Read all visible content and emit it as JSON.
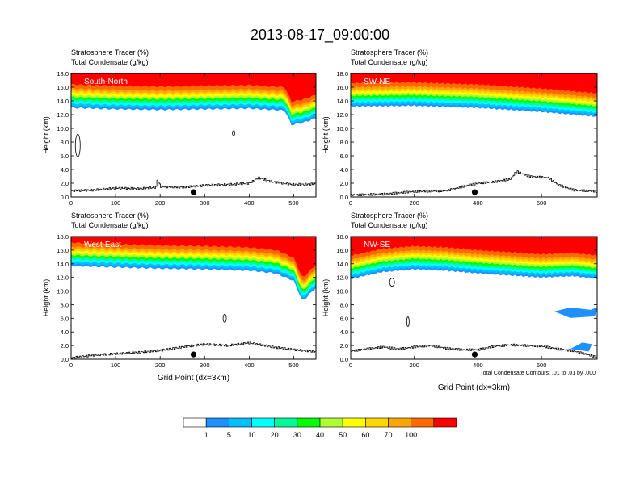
{
  "figure_title": "2013-08-17_09:00:00",
  "left_string_1": "Stratosphere Tracer   (%)",
  "left_string_2": "Total Condensate   (g/kg)",
  "footnote": "Total Condensate Contours: .01 to .01 by .000",
  "colorbar": {
    "levels": [
      "1",
      "5",
      "10",
      "20",
      "30",
      "40",
      "50",
      "60",
      "70",
      "100"
    ],
    "colors": [
      "#ffffff",
      "#1e90ff",
      "#00bfff",
      "#00ffff",
      "#00fa9a",
      "#00ff00",
      "#adff2f",
      "#ffff00",
      "#ffd700",
      "#ffa500",
      "#ff6a00",
      "#ff0000"
    ]
  },
  "chart_data": [
    {
      "type": "heatmap",
      "panel_label": "South-North",
      "title_lines": [
        "Stratosphere Tracer   (%)",
        "Total Condensate   (g/kg)"
      ],
      "xlabel": "",
      "ylabel": "Height (km)",
      "xlim": [
        0,
        550
      ],
      "ylim": [
        0,
        18
      ],
      "xticks": [
        "0",
        "100",
        "200",
        "300",
        "400",
        "500"
      ],
      "yticks": [
        "0.0",
        "2.0",
        "4.0",
        "6.0",
        "8.0",
        "10.0",
        "12.0",
        "14.0",
        "16.0",
        "18.0"
      ],
      "tracer_base_km": [
        [
          0,
          13.0
        ],
        [
          100,
          12.8
        ],
        [
          200,
          12.7
        ],
        [
          300,
          12.8
        ],
        [
          400,
          12.9
        ],
        [
          480,
          12.6
        ],
        [
          495,
          10.5
        ],
        [
          520,
          10.8
        ],
        [
          550,
          11.5
        ]
      ],
      "terrain_km": [
        [
          0,
          0.9
        ],
        [
          50,
          1.0
        ],
        [
          100,
          1.3
        ],
        [
          150,
          1.2
        ],
        [
          190,
          1.4
        ],
        [
          192,
          2.6
        ],
        [
          200,
          1.5
        ],
        [
          250,
          1.4
        ],
        [
          300,
          1.7
        ],
        [
          350,
          1.8
        ],
        [
          400,
          2.0
        ],
        [
          420,
          2.8
        ],
        [
          450,
          2.2
        ],
        [
          500,
          1.8
        ],
        [
          550,
          1.9
        ]
      ],
      "marker_x": 275
    },
    {
      "type": "heatmap",
      "panel_label": "SW-NE",
      "title_lines": [
        "Stratosphere Tracer   (%)",
        "Total Condensate   (g/kg)"
      ],
      "xlabel": "",
      "ylabel": "Height (km)",
      "xlim": [
        0,
        775
      ],
      "ylim": [
        0,
        18
      ],
      "xticks": [
        "0",
        "200",
        "400",
        "600"
      ],
      "yticks": [
        "0.0",
        "2.0",
        "4.0",
        "6.0",
        "8.0",
        "10.0",
        "12.0",
        "14.0",
        "16.0",
        "18.0"
      ],
      "tracer_base_km": [
        [
          0,
          13.2
        ],
        [
          200,
          13.3
        ],
        [
          400,
          13.0
        ],
        [
          600,
          12.4
        ],
        [
          775,
          11.7
        ]
      ],
      "terrain_km": [
        [
          0,
          0.3
        ],
        [
          100,
          0.4
        ],
        [
          200,
          0.8
        ],
        [
          300,
          0.9
        ],
        [
          350,
          1.5
        ],
        [
          400,
          2.0
        ],
        [
          450,
          2.2
        ],
        [
          500,
          2.6
        ],
        [
          520,
          3.7
        ],
        [
          560,
          3.0
        ],
        [
          620,
          2.8
        ],
        [
          650,
          1.8
        ],
        [
          700,
          1.0
        ],
        [
          775,
          0.8
        ]
      ],
      "marker_x": 390
    },
    {
      "type": "heatmap",
      "panel_label": "West-East",
      "title_lines": [
        "Stratosphere Tracer   (%)",
        "Total Condensate   (g/kg)"
      ],
      "xlabel": "Grid Point (dx=3km)",
      "ylabel": "Height (km)",
      "xlim": [
        0,
        550
      ],
      "ylim": [
        0,
        18
      ],
      "xticks": [
        "0",
        "100",
        "200",
        "300",
        "400",
        "500"
      ],
      "yticks": [
        "0.0",
        "2.0",
        "4.0",
        "6.0",
        "8.0",
        "10.0",
        "12.0",
        "14.0",
        "16.0",
        "18.0"
      ],
      "tracer_base_km": [
        [
          0,
          13.7
        ],
        [
          100,
          13.5
        ],
        [
          200,
          13.3
        ],
        [
          300,
          13.2
        ],
        [
          400,
          13.0
        ],
        [
          460,
          12.6
        ],
        [
          500,
          11.5
        ],
        [
          520,
          8.5
        ],
        [
          550,
          10.5
        ]
      ],
      "terrain_km": [
        [
          0,
          0.2
        ],
        [
          50,
          0.6
        ],
        [
          100,
          0.8
        ],
        [
          150,
          1.0
        ],
        [
          200,
          1.3
        ],
        [
          250,
          1.8
        ],
        [
          300,
          2.2
        ],
        [
          350,
          2.0
        ],
        [
          400,
          2.4
        ],
        [
          450,
          1.8
        ],
        [
          500,
          1.4
        ],
        [
          550,
          1.1
        ]
      ],
      "marker_x": 275
    },
    {
      "type": "heatmap",
      "panel_label": "NW-SE",
      "title_lines": [
        "Stratosphere Tracer   (%)",
        "Total Condensate   (g/kg)"
      ],
      "xlabel": "Grid Point (dx=3km)",
      "ylabel": "Height (km)",
      "xlim": [
        0,
        775
      ],
      "ylim": [
        0,
        18
      ],
      "xticks": [
        "0",
        "200",
        "400",
        "600"
      ],
      "yticks": [
        "0.0",
        "2.0",
        "4.0",
        "6.0",
        "8.0",
        "10.0",
        "12.0",
        "14.0",
        "16.0",
        "18.0"
      ],
      "tracer_base_km": [
        [
          0,
          11.8
        ],
        [
          100,
          12.8
        ],
        [
          200,
          13.2
        ],
        [
          300,
          13.0
        ],
        [
          400,
          12.6
        ],
        [
          500,
          12.3
        ],
        [
          600,
          12.0
        ],
        [
          700,
          12.2
        ],
        [
          775,
          11.8
        ]
      ],
      "terrain_km": [
        [
          0,
          1.2
        ],
        [
          50,
          1.5
        ],
        [
          100,
          1.8
        ],
        [
          150,
          1.5
        ],
        [
          200,
          1.8
        ],
        [
          250,
          2.0
        ],
        [
          300,
          1.6
        ],
        [
          350,
          1.4
        ],
        [
          400,
          1.4
        ],
        [
          450,
          1.9
        ],
        [
          500,
          2.1
        ],
        [
          550,
          2.0
        ],
        [
          600,
          1.9
        ],
        [
          650,
          1.5
        ],
        [
          700,
          1.2
        ],
        [
          750,
          0.6
        ],
        [
          775,
          0.2
        ]
      ],
      "marker_x": 390
    }
  ]
}
